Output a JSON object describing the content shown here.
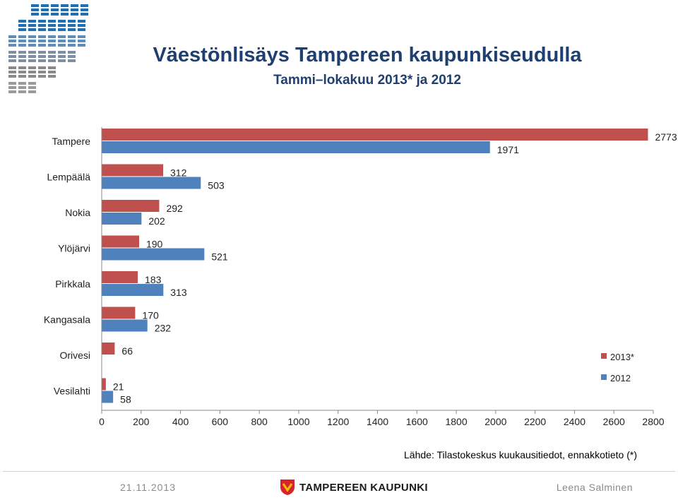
{
  "header": {
    "title": "Väestönlisäys Tampereen kaupunkiseudulla",
    "subtitle": "Tammi–lokakuu 2013* ja 2012"
  },
  "chart_data": {
    "type": "bar",
    "orientation": "horizontal",
    "title": "Väestönlisäys Tampereen kaupunkiseudulla",
    "subtitle": "Tammi–lokakuu 2013* ja 2012",
    "categories": [
      "Tampere",
      "Lempäälä",
      "Nokia",
      "Ylöjärvi",
      "Pirkkala",
      "Kangasala",
      "Orivesi",
      "Vesilahti"
    ],
    "series": [
      {
        "name": "2013*",
        "color": "#c0504d",
        "values": [
          2773,
          312,
          292,
          190,
          183,
          170,
          66,
          21
        ]
      },
      {
        "name": "2012",
        "color": "#4f81bd",
        "values": [
          1971,
          503,
          202,
          521,
          313,
          232,
          null,
          58
        ]
      }
    ],
    "xlim": [
      0,
      2800
    ],
    "xticks": [
      0,
      200,
      400,
      600,
      800,
      1000,
      1200,
      1400,
      1600,
      1800,
      2000,
      2200,
      2400,
      2600,
      2800
    ],
    "grid": false,
    "legend": "right"
  },
  "footer": {
    "source": "Lähde: Tilastokeskus kuukausitiedot, ennakkotieto (*)",
    "date": "21.11.2013",
    "organization": "TAMPEREEN KAUPUNKI",
    "author": "Leena Salminen"
  },
  "icons": {
    "logo": "tampere-region-grid-logo",
    "city_logo": "tampere-coat-of-arms-icon"
  }
}
